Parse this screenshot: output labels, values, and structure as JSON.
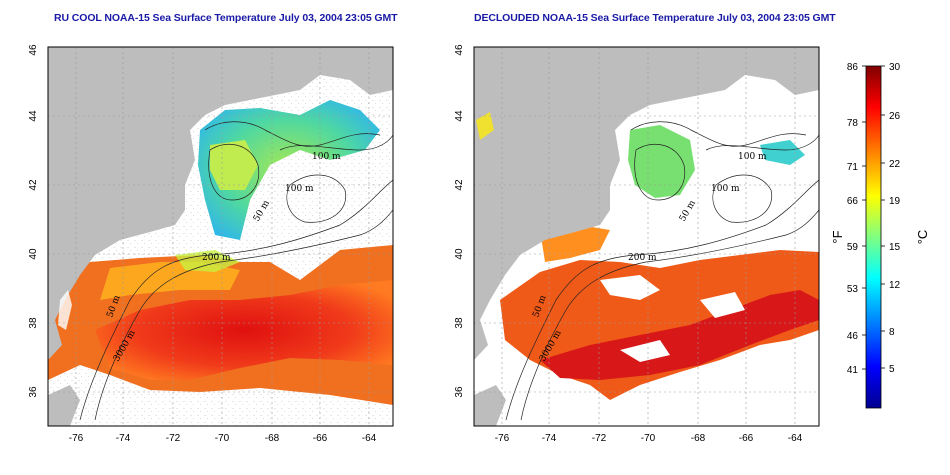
{
  "titles": {
    "left": "RU COOL NOAA-15 Sea Surface Temperature July 03, 2004 23:05 GMT",
    "right": "DECLOUDED NOAA-15 Sea Surface Temperature July 03, 2004 23:05 GMT"
  },
  "axes": {
    "lon_ticks": [
      "-76",
      "-74",
      "-72",
      "-70",
      "-68",
      "-66",
      "-64"
    ],
    "lat_ticks": [
      "36",
      "38",
      "40",
      "42",
      "44",
      "46"
    ]
  },
  "contours": {
    "left": [
      "100 m",
      "100 m",
      "50 m",
      "200 m",
      "50 m",
      "3000 m"
    ],
    "right": [
      "100 m",
      "100 m",
      "50 m",
      "200 m",
      "50 m",
      "3000 m"
    ]
  },
  "colorbar": {
    "fahrenheit_label": "°F",
    "celsius_label": "°C",
    "fahrenheit_ticks": [
      "86",
      "78",
      "71",
      "66",
      "59",
      "53",
      "46",
      "41"
    ],
    "celsius_ticks": [
      "30",
      "26",
      "22",
      "19",
      "15",
      "12",
      "8",
      "5"
    ],
    "colors": [
      "#00008f",
      "#0000ff",
      "#0080ff",
      "#00ffff",
      "#80ff80",
      "#ffff00",
      "#ff8000",
      "#ff0000",
      "#800000"
    ]
  }
}
